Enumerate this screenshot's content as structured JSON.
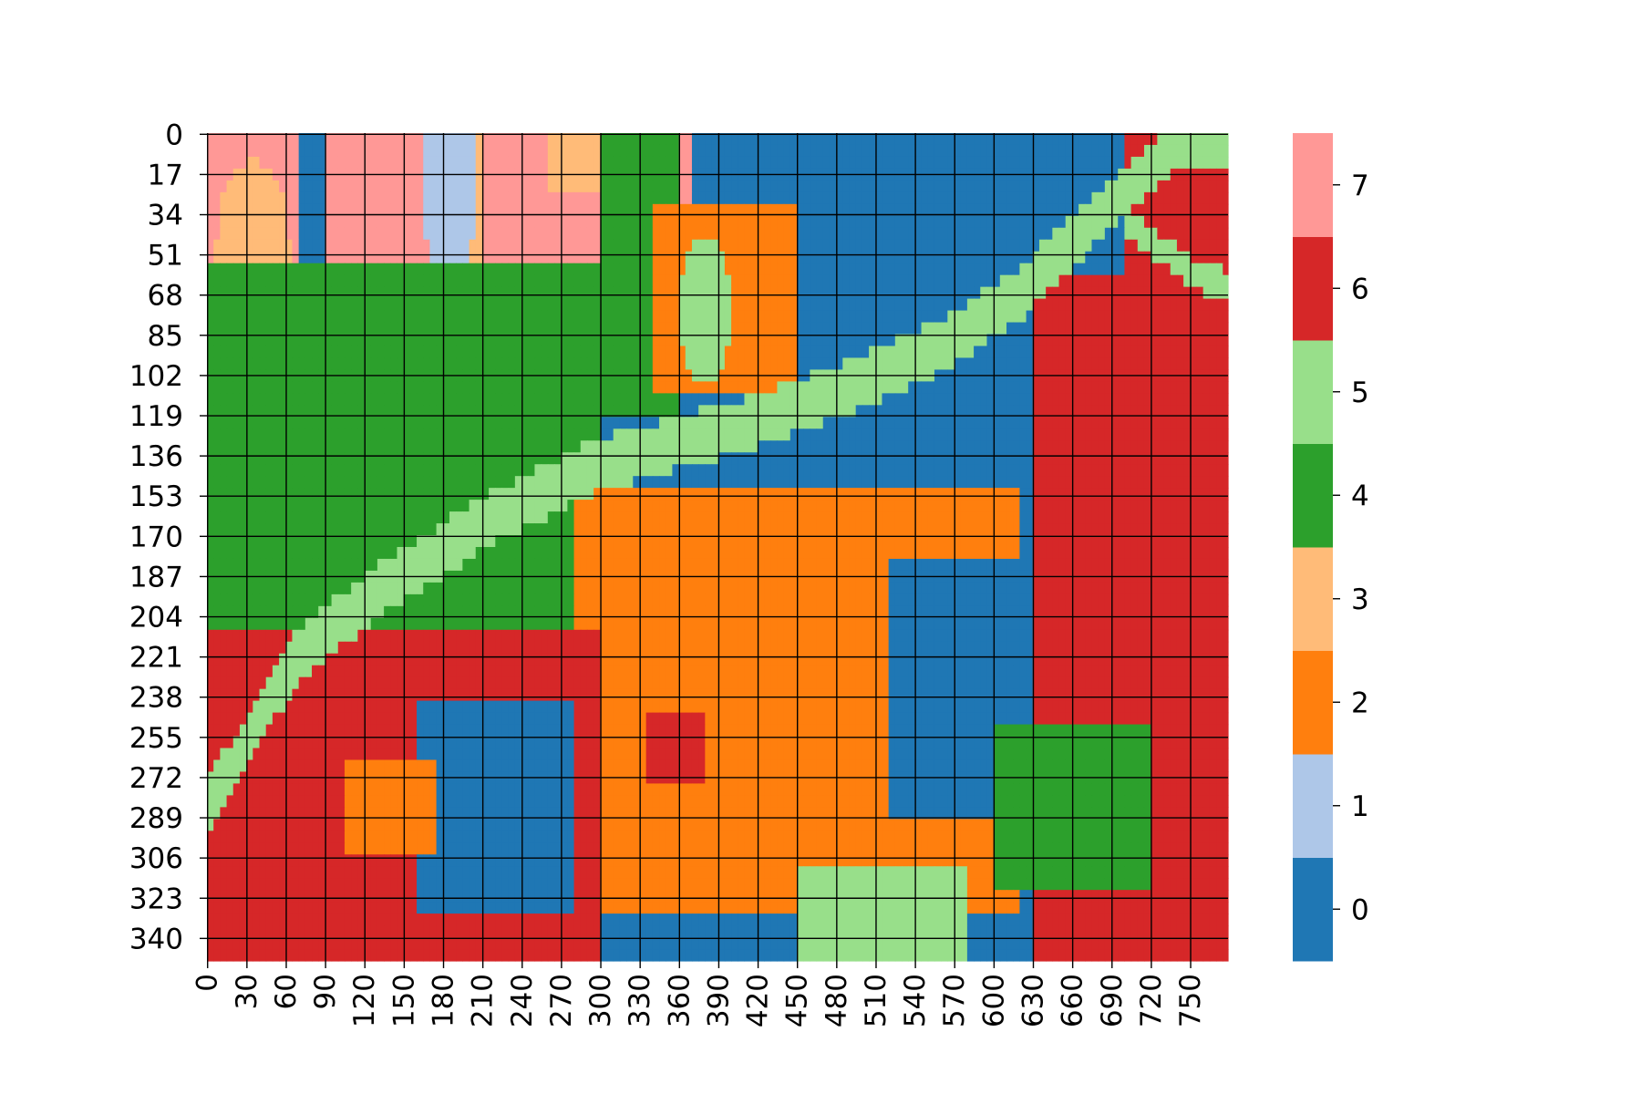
{
  "chart_data": {
    "type": "heatmap",
    "title": "",
    "xlabel": "",
    "ylabel": "",
    "grid": true,
    "legend": "colorbar-right",
    "n_rows": 350,
    "n_cols": 779,
    "x_ticks": [
      "0",
      "30",
      "60",
      "90",
      "120",
      "150",
      "180",
      "210",
      "240",
      "270",
      "300",
      "330",
      "360",
      "390",
      "420",
      "450",
      "480",
      "510",
      "540",
      "570",
      "600",
      "630",
      "660",
      "690",
      "720",
      "750"
    ],
    "y_ticks": [
      "0",
      "17",
      "34",
      "51",
      "68",
      "85",
      "102",
      "119",
      "136",
      "153",
      "170",
      "187",
      "204",
      "221",
      "238",
      "255",
      "272",
      "289",
      "306",
      "323",
      "340"
    ],
    "colorbar": {
      "ticks": [
        "0",
        "1",
        "2",
        "3",
        "4",
        "5",
        "6",
        "7"
      ],
      "classes": [
        {
          "value": 0,
          "color": "#1f77b4"
        },
        {
          "value": 1,
          "color": "#aec7e8"
        },
        {
          "value": 2,
          "color": "#ff7f0e"
        },
        {
          "value": 3,
          "color": "#ffbb78"
        },
        {
          "value": 4,
          "color": "#2ca02c"
        },
        {
          "value": 5,
          "color": "#98df8a"
        },
        {
          "value": 6,
          "color": "#d62728"
        },
        {
          "value": 7,
          "color": "#ff9896"
        }
      ]
    },
    "regions": [
      {
        "value": 7,
        "shape": "rect",
        "rows": [
          0,
          90
        ],
        "cols": [
          0,
          70
        ]
      },
      {
        "value": 3,
        "shape": "ellipse",
        "center": [
          50,
          35
        ],
        "radius": [
          38,
          28
        ]
      },
      {
        "value": 7,
        "shape": "rect",
        "rows": [
          0,
          55
        ],
        "cols": [
          90,
          370
        ]
      },
      {
        "value": 3,
        "shape": "ellipse",
        "center": [
          35,
          190
        ],
        "radius": [
          60,
          22
        ]
      },
      {
        "value": 1,
        "shape": "ellipse",
        "center": [
          20,
          185
        ],
        "radius": [
          45,
          22
        ]
      },
      {
        "value": 3,
        "shape": "rect",
        "rows": [
          0,
          25
        ],
        "cols": [
          260,
          330
        ]
      },
      {
        "value": 4,
        "shape": "rect",
        "rows": [
          55,
          210
        ],
        "cols": [
          0,
          300
        ]
      },
      {
        "value": 4,
        "shape": "rect",
        "rows": [
          0,
          120
        ],
        "cols": [
          300,
          360
        ]
      },
      {
        "value": 2,
        "shape": "rect",
        "rows": [
          30,
          110
        ],
        "cols": [
          340,
          460
        ]
      },
      {
        "value": 5,
        "shape": "ellipse",
        "center": [
          75,
          380
        ],
        "radius": [
          30,
          20
        ]
      },
      {
        "value": 0,
        "shape": "rect",
        "rows": [
          0,
          150
        ],
        "cols": [
          450,
          779
        ]
      },
      {
        "value": 6,
        "shape": "rect",
        "rows": [
          60,
          350
        ],
        "cols": [
          630,
          779
        ]
      },
      {
        "value": 6,
        "shape": "rect",
        "rows": [
          0,
          60
        ],
        "cols": [
          700,
          779
        ]
      },
      {
        "value": 2,
        "shape": "rect",
        "rows": [
          150,
          330
        ],
        "cols": [
          280,
          620
        ]
      },
      {
        "value": 0,
        "shape": "rect",
        "rows": [
          180,
          290
        ],
        "cols": [
          520,
          620
        ]
      },
      {
        "value": 4,
        "shape": "rect",
        "rows": [
          250,
          320
        ],
        "cols": [
          600,
          720
        ]
      },
      {
        "value": 6,
        "shape": "rect",
        "rows": [
          210,
          350
        ],
        "cols": [
          0,
          300
        ]
      },
      {
        "value": 0,
        "shape": "rect",
        "rows": [
          240,
          330
        ],
        "cols": [
          160,
          280
        ]
      },
      {
        "value": 2,
        "shape": "rect",
        "rows": [
          265,
          305
        ],
        "cols": [
          105,
          175
        ]
      },
      {
        "value": 6,
        "shape": "rect",
        "rows": [
          245,
          275
        ],
        "cols": [
          335,
          380
        ]
      },
      {
        "value": 5,
        "shape": "rect",
        "rows": [
          310,
          350
        ],
        "cols": [
          450,
          580
        ]
      }
    ],
    "river": {
      "value": 5,
      "centerline_y_at_x": [
        [
          0,
          285
        ],
        [
          70,
          220
        ],
        [
          140,
          190
        ],
        [
          220,
          162
        ],
        [
          300,
          140
        ],
        [
          400,
          125
        ],
        [
          480,
          110
        ],
        [
          560,
          90
        ],
        [
          620,
          68
        ],
        [
          680,
          35
        ],
        [
          740,
          5
        ]
      ],
      "width_rows": 22
    },
    "branch": {
      "value": 5,
      "centerline_y_at_x": [
        [
          700,
          38
        ],
        [
          760,
          62
        ],
        [
          779,
          64
        ]
      ],
      "width_rows": 12
    }
  }
}
